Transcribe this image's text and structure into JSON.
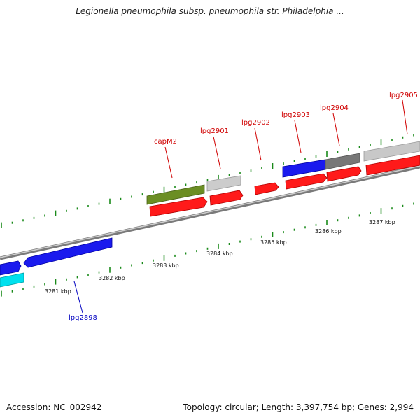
{
  "header": {
    "title": "Legionella pneumophila subsp. pneumophila str. Philadelphia ..."
  },
  "footer": {
    "accession": "Accession: NC_002942",
    "summary": "Topology: circular; Length: 3,397,754 bp; Genes: 2,994"
  },
  "colors": {
    "backbone": "#8a8a8a",
    "tick": "#1a8a1a",
    "forward_label": "#d00000",
    "reverse_label": "#0000c0",
    "red": "#ff0000",
    "blue": "#1010e0",
    "cyan": "#00e0ee",
    "olive": "#6b8e23",
    "light_gray": "#c8c8c8",
    "dark_gray": "#707070"
  },
  "scale": {
    "labels": [
      "3281 kbp",
      "3282 kbp",
      "3283 kbp",
      "3284 kbp",
      "3285 kbp",
      "3286 kbp",
      "3287 kbp"
    ]
  },
  "genes": {
    "forward_labels": [
      "capM2",
      "lpg2901",
      "lpg2902",
      "lpg2903",
      "lpg2904",
      "lpg2905"
    ],
    "reverse_labels": [
      "lpg2898"
    ]
  }
}
